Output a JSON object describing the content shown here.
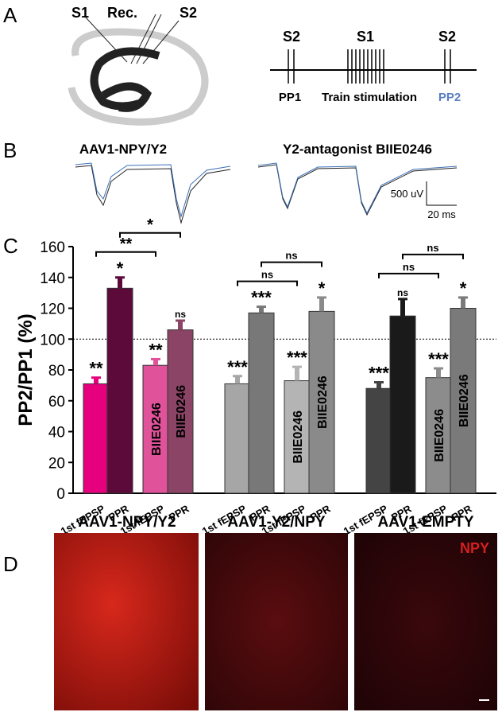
{
  "panel_a": {
    "label": "A",
    "schematic": {
      "s1": "S1",
      "rec": "Rec.",
      "s2": "S2"
    },
    "protocol": {
      "s2_left": "S2",
      "s1": "S1",
      "s2_right": "S2",
      "pp1": "PP1",
      "train": "Train stimulation",
      "pp2": "PP2"
    }
  },
  "panel_b": {
    "label": "B",
    "trace_titles": [
      "AAV1-NPY/Y2",
      "Y2-antagonist BIIE0246"
    ],
    "scale_y": "500 uV",
    "scale_x": "20 ms"
  },
  "panel_c": {
    "label": "C"
  },
  "chart_data": {
    "type": "bar",
    "y_label": "PP2/PP1 (%)",
    "ylim": [
      0,
      160
    ],
    "yticks": [
      0,
      20,
      40,
      60,
      80,
      100,
      120,
      140,
      160
    ],
    "reference_line": 100,
    "categories": [
      "1st fEPSP",
      "PPR",
      "1st fEPSP",
      "PPR",
      "1st fEPSP",
      "PPR",
      "1st fEPSP",
      "PPR",
      "1st fEPSP",
      "PPR",
      "1st fEPSP",
      "PPR"
    ],
    "series": [
      {
        "values": [
          71,
          133,
          83,
          106,
          71,
          117,
          73,
          118,
          68,
          115,
          75,
          120
        ],
        "errors": [
          4,
          7,
          4,
          6,
          5,
          4,
          9,
          9,
          4,
          11,
          6,
          7
        ],
        "colors": [
          "#e6007e",
          "#5c0a3a",
          "#e0529a",
          "#8c4466",
          "#a6a6a6",
          "#787878",
          "#b4b4b4",
          "#8a8a8a",
          "#444444",
          "#1a1a1a",
          "#8c8c8c",
          "#7a7a7a"
        ],
        "bar_labels": [
          null,
          null,
          "BIIE0246",
          "BIIE0246",
          null,
          null,
          "BIIE0246",
          "BIIE0246",
          null,
          null,
          "BIIE0246",
          "BIIE0246"
        ],
        "significance": [
          "**",
          "*",
          "**",
          "ns",
          "***",
          "***",
          "***",
          "*",
          "***",
          "ns",
          "***",
          "*"
        ]
      }
    ],
    "brackets": [
      {
        "from": 0,
        "to": 2,
        "label": "**"
      },
      {
        "from": 1,
        "to": 3,
        "label": "*"
      },
      {
        "from": 4,
        "to": 6,
        "label": "ns"
      },
      {
        "from": 5,
        "to": 7,
        "label": "ns"
      },
      {
        "from": 8,
        "to": 10,
        "label": "ns"
      },
      {
        "from": 9,
        "to": 11,
        "label": "ns"
      }
    ]
  },
  "panel_d": {
    "label": "D",
    "titles": [
      "AAV1-NPY/Y2",
      "AAV1-Y2/NPY",
      "AAV1-EMPTY"
    ],
    "stain": "NPY"
  }
}
